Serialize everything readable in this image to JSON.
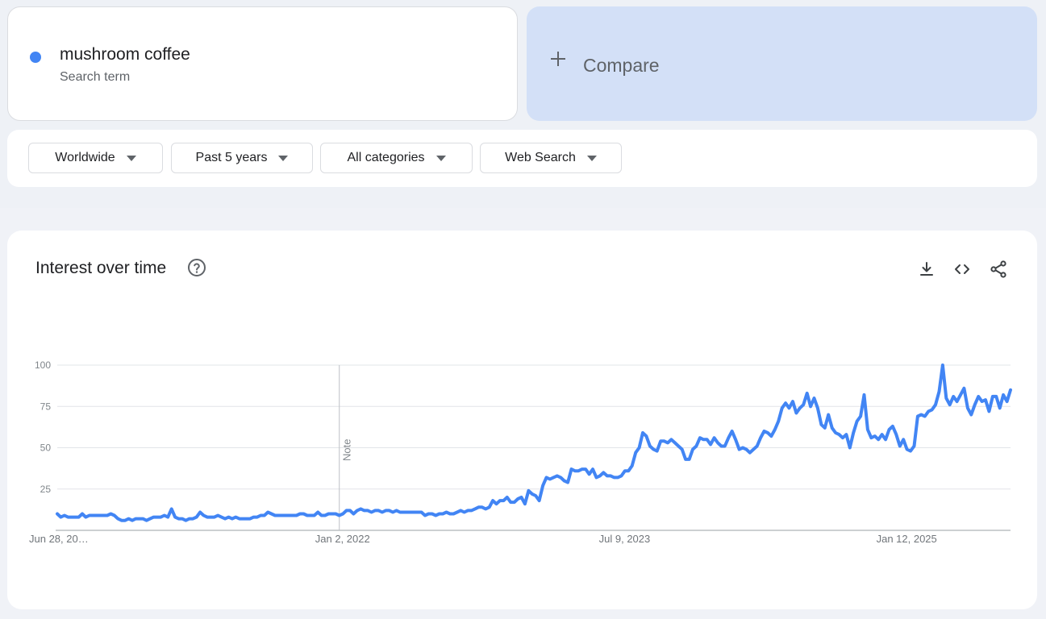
{
  "term": {
    "name": "mushroom coffee",
    "subtitle": "Search term",
    "dot_color": "#4285f4"
  },
  "compare": {
    "label": "Compare",
    "icon": "plus-icon"
  },
  "filters": [
    {
      "label": "Worldwide"
    },
    {
      "label": "Past 5 years"
    },
    {
      "label": "All categories"
    },
    {
      "label": "Web Search"
    }
  ],
  "chart_title": "Interest over time",
  "toolbar": {
    "download_icon": "download-icon",
    "embed_icon": "code-icon",
    "share_icon": "share-icon",
    "help_icon": "help-icon"
  },
  "colors": {
    "series": "#4285f4",
    "grid": "#dadce0",
    "compare_bg": "#d3e0f7"
  },
  "chart_data": {
    "type": "line",
    "title": "",
    "xlabel": "",
    "ylabel": "",
    "ylim": [
      0,
      100
    ],
    "yticks": [
      "100",
      "75",
      "50",
      "25"
    ],
    "xticks": [
      {
        "index": 0,
        "label": "Jun 28, 20…"
      },
      {
        "index": 79,
        "label": "Jan 2, 2022"
      },
      {
        "index": 158,
        "label": "Jul 9, 2023"
      },
      {
        "index": 237,
        "label": "Jan 12, 2025"
      }
    ],
    "note": {
      "index": 79,
      "label": "Note"
    },
    "grid": true,
    "series": [
      {
        "values": [
          10,
          8,
          9,
          8,
          8,
          8,
          8,
          10,
          8,
          9,
          9,
          9,
          9,
          9,
          9,
          10,
          9,
          7,
          6,
          6,
          7,
          6,
          7,
          7,
          7,
          6,
          7,
          8,
          8,
          8,
          9,
          8,
          13,
          8,
          7,
          7,
          6,
          7,
          7,
          8,
          11,
          9,
          8,
          8,
          8,
          9,
          8,
          7,
          8,
          7,
          8,
          7,
          7,
          7,
          7,
          8,
          8,
          9,
          9,
          11,
          10,
          9,
          9,
          9,
          9,
          9,
          9,
          9,
          10,
          10,
          9,
          9,
          9,
          11,
          9,
          9,
          10,
          10,
          10,
          9,
          10,
          12,
          12,
          10,
          12,
          13,
          12,
          12,
          11,
          12,
          12,
          11,
          12,
          12,
          11,
          12,
          11,
          11,
          11,
          11,
          11,
          11,
          11,
          9,
          10,
          10,
          9,
          10,
          10,
          11,
          10,
          10,
          11,
          12,
          11,
          12,
          12,
          13,
          14,
          14,
          13,
          14,
          18,
          16,
          18,
          18,
          20,
          17,
          17,
          19,
          20,
          16,
          24,
          22,
          21,
          18,
          27,
          32,
          31,
          32,
          33,
          32,
          30,
          29,
          37,
          36,
          36,
          37,
          37,
          34,
          37,
          32,
          33,
          35,
          33,
          33,
          32,
          32,
          33,
          36,
          36,
          39,
          47,
          50,
          59,
          57,
          51,
          49,
          48,
          54,
          54,
          53,
          55,
          53,
          51,
          49,
          43,
          43,
          49,
          51,
          56,
          55,
          55,
          52,
          56,
          53,
          51,
          51,
          56,
          60,
          55,
          49,
          50,
          49,
          47,
          49,
          51,
          56,
          60,
          59,
          57,
          61,
          66,
          74,
          77,
          74,
          78,
          71,
          74,
          76,
          83,
          75,
          80,
          74,
          64,
          62,
          70,
          62,
          59,
          58,
          56,
          58,
          50,
          59,
          66,
          69,
          82,
          61,
          56,
          57,
          55,
          58,
          55,
          61,
          63,
          58,
          51,
          55,
          49,
          48,
          51,
          69,
          70,
          69,
          72,
          73,
          76,
          84,
          100,
          80,
          76,
          81,
          78,
          82,
          86,
          74,
          70,
          76,
          81,
          78,
          79,
          72,
          81,
          81,
          74,
          82,
          78,
          85
        ]
      }
    ]
  }
}
